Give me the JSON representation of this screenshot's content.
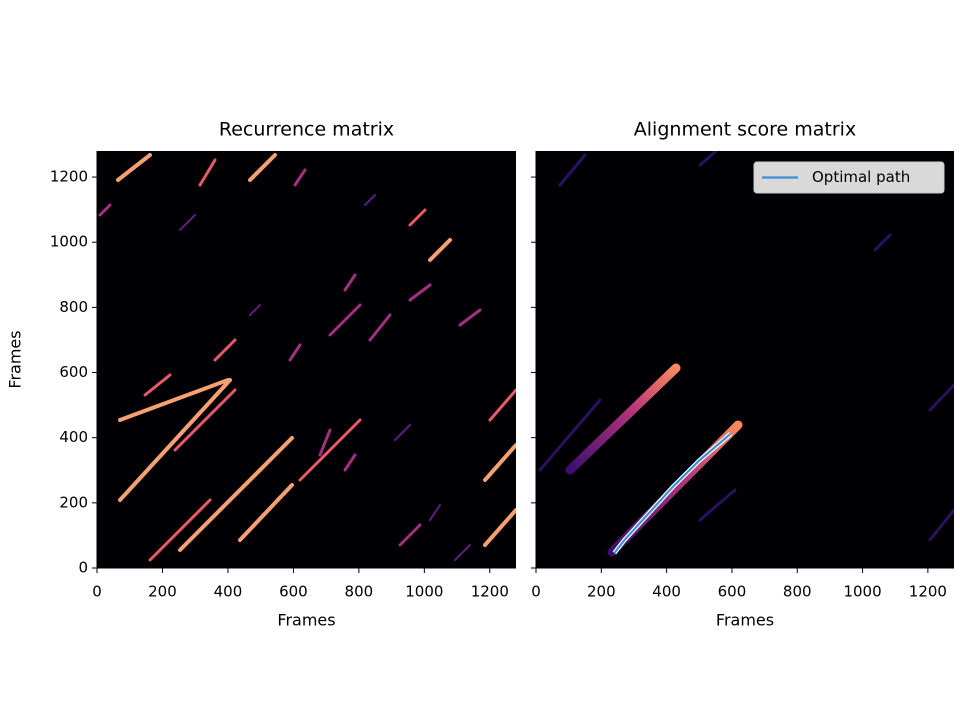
{
  "chart_data": [
    {
      "type": "heatmap",
      "title": "Recurrence matrix",
      "xlabel": "Frames",
      "ylabel": "Frames",
      "xlim": [
        0,
        1280
      ],
      "ylim": [
        0,
        1280
      ],
      "xticks": [
        0,
        200,
        400,
        600,
        800,
        1000,
        1200
      ],
      "yticks": [
        0,
        200,
        400,
        600,
        800,
        1000,
        1200
      ],
      "colormap": "magma",
      "show_yticklabels": true
    },
    {
      "type": "heatmap",
      "title": "Alignment score matrix",
      "xlabel": "Frames",
      "xlim": [
        0,
        1280
      ],
      "ylim": [
        0,
        1280
      ],
      "xticks": [
        0,
        200,
        400,
        600,
        800,
        1000,
        1200
      ],
      "yticks": [
        0,
        200,
        400,
        600,
        800,
        1000,
        1200
      ],
      "colormap": "magma",
      "show_yticklabels": false,
      "legend": "upper right",
      "series": [
        {
          "name": "Optimal path",
          "color": "#3b8fd8",
          "x": [
            240,
            270,
            420,
            500,
            596
          ],
          "y": [
            46,
            85,
            250,
            330,
            412
          ]
        }
      ]
    }
  ]
}
